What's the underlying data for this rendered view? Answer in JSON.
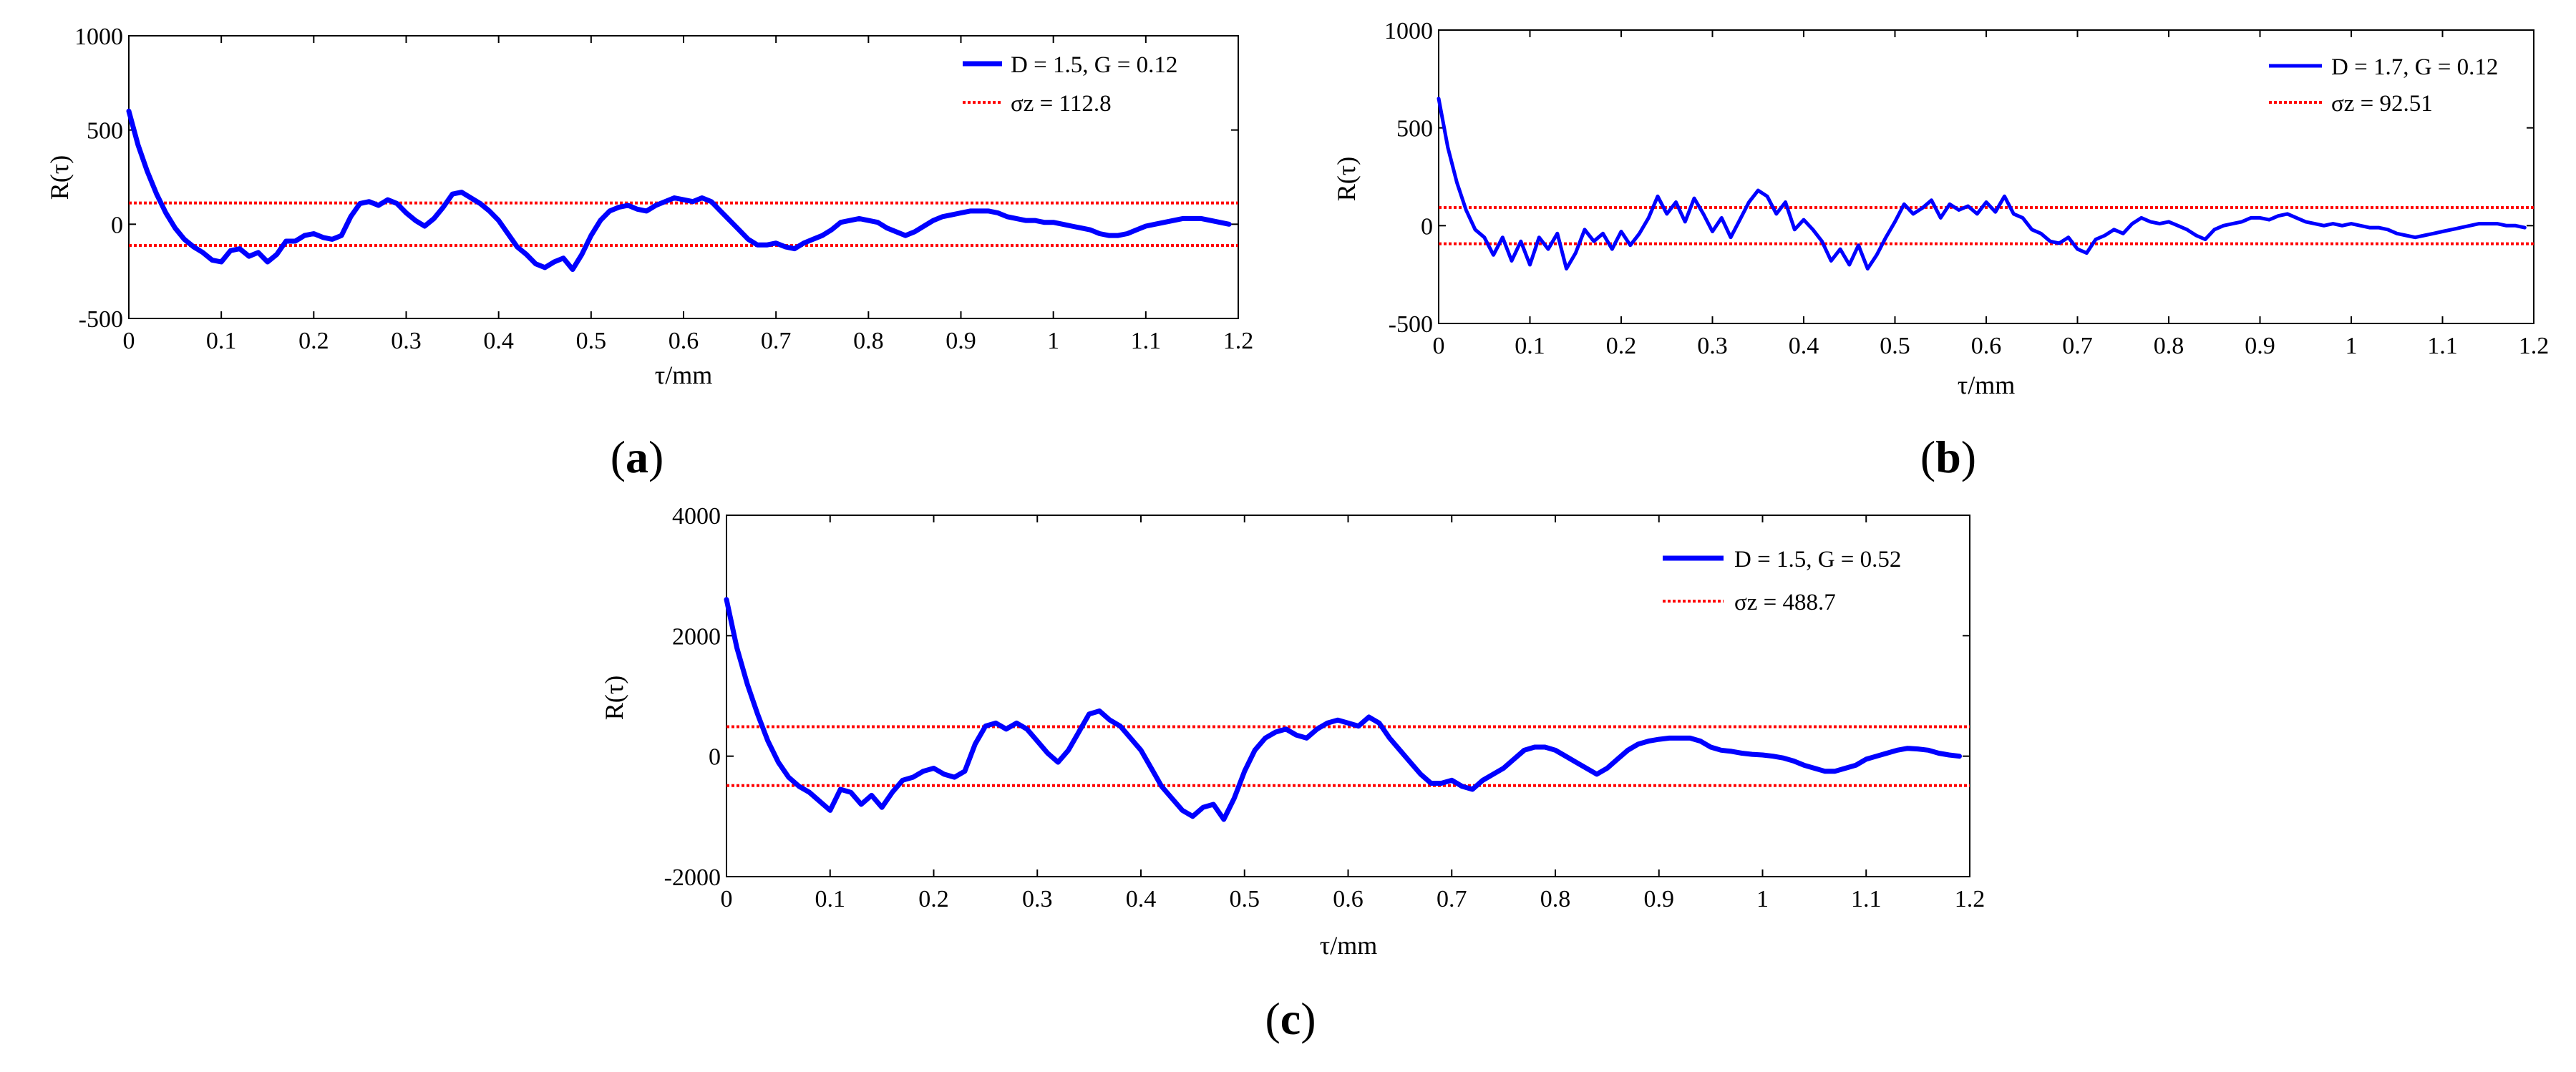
{
  "figure": {
    "type": "multi-panel chart",
    "description_labels": [
      "(a)",
      "(b)",
      "(c)"
    ]
  },
  "chart_data": [
    {
      "id": "a",
      "type": "line",
      "panel_label": {
        "open": "(",
        "letter": "a",
        "close": ")"
      },
      "xlabel": "τ/mm",
      "ylabel": "R(τ)",
      "xlim": [
        0,
        1.2
      ],
      "ylim": [
        -500,
        1000
      ],
      "xticks": [
        0,
        0.1,
        0.2,
        0.3,
        0.4,
        0.5,
        0.6,
        0.7,
        0.8,
        0.9,
        1,
        1.1,
        1.2
      ],
      "xtick_labels": [
        "0",
        "0.1",
        "0.2",
        "0.3",
        "0.4",
        "0.5",
        "0.6",
        "0.7",
        "0.8",
        "0.9",
        "1",
        "1.1",
        "1.2"
      ],
      "yticks": [
        -500,
        0,
        500,
        1000
      ],
      "ytick_labels": [
        "-500",
        "0",
        "500",
        "1000"
      ],
      "legend": [
        {
          "label": "D = 1.5, G = 0.12",
          "color": "#0000ff",
          "style": "solid"
        },
        {
          "label": "σz = 112.8",
          "color": "#ff0000",
          "style": "dotted"
        }
      ],
      "sigma": 112.8,
      "series": [
        {
          "name": "D = 1.5, G = 0.12",
          "color": "#0000ff",
          "x": [
            0,
            0.01,
            0.02,
            0.03,
            0.04,
            0.05,
            0.06,
            0.07,
            0.08,
            0.09,
            0.1,
            0.11,
            0.12,
            0.13,
            0.14,
            0.15,
            0.16,
            0.17,
            0.18,
            0.19,
            0.2,
            0.21,
            0.22,
            0.23,
            0.24,
            0.25,
            0.26,
            0.27,
            0.28,
            0.29,
            0.3,
            0.31,
            0.32,
            0.33,
            0.34,
            0.35,
            0.36,
            0.37,
            0.38,
            0.39,
            0.4,
            0.41,
            0.42,
            0.43,
            0.44,
            0.45,
            0.46,
            0.47,
            0.48,
            0.49,
            0.5,
            0.51,
            0.52,
            0.53,
            0.54,
            0.55,
            0.56,
            0.57,
            0.58,
            0.59,
            0.6,
            0.61,
            0.62,
            0.63,
            0.64,
            0.65,
            0.66,
            0.67,
            0.68,
            0.69,
            0.7,
            0.71,
            0.72,
            0.73,
            0.74,
            0.75,
            0.76,
            0.77,
            0.78,
            0.79,
            0.8,
            0.81,
            0.82,
            0.83,
            0.84,
            0.85,
            0.86,
            0.87,
            0.88,
            0.89,
            0.9,
            0.91,
            0.92,
            0.93,
            0.94,
            0.95,
            0.96,
            0.97,
            0.98,
            0.99,
            1.0,
            1.01,
            1.02,
            1.03,
            1.04,
            1.05,
            1.06,
            1.07,
            1.08,
            1.09,
            1.1,
            1.11,
            1.12,
            1.13,
            1.14,
            1.15,
            1.16,
            1.17,
            1.18,
            1.19
          ],
          "y": [
            600,
            420,
            280,
            160,
            60,
            -20,
            -80,
            -120,
            -150,
            -190,
            -200,
            -140,
            -130,
            -170,
            -150,
            -200,
            -160,
            -90,
            -90,
            -60,
            -50,
            -70,
            -80,
            -60,
            40,
            110,
            120,
            100,
            130,
            110,
            60,
            20,
            -10,
            30,
            90,
            160,
            170,
            140,
            110,
            70,
            20,
            -50,
            -120,
            -160,
            -210,
            -230,
            -200,
            -180,
            -240,
            -160,
            -60,
            20,
            70,
            90,
            100,
            80,
            70,
            100,
            120,
            140,
            130,
            120,
            140,
            120,
            70,
            20,
            -30,
            -80,
            -110,
            -110,
            -100,
            -120,
            -130,
            -100,
            -80,
            -60,
            -30,
            10,
            20,
            30,
            20,
            10,
            -20,
            -40,
            -60,
            -40,
            -10,
            20,
            40,
            50,
            60,
            70,
            70,
            70,
            60,
            40,
            30,
            20,
            20,
            10,
            10,
            0,
            -10,
            -20,
            -30,
            -50,
            -60,
            -60,
            -50,
            -30,
            -10,
            0,
            10,
            20,
            30,
            30,
            30,
            20,
            10,
            0
          ]
        }
      ]
    },
    {
      "id": "b",
      "type": "line",
      "panel_label": {
        "open": "(",
        "letter": "b",
        "close": ")"
      },
      "xlabel": "τ/mm",
      "ylabel": "R(τ)",
      "xlim": [
        0,
        1.2
      ],
      "ylim": [
        -500,
        1000
      ],
      "xticks": [
        0,
        0.1,
        0.2,
        0.3,
        0.4,
        0.5,
        0.6,
        0.7,
        0.8,
        0.9,
        1,
        1.1,
        1.2
      ],
      "xtick_labels": [
        "0",
        "0.1",
        "0.2",
        "0.3",
        "0.4",
        "0.5",
        "0.6",
        "0.7",
        "0.8",
        "0.9",
        "1",
        "1.1",
        "1.2"
      ],
      "yticks": [
        -500,
        0,
        500,
        1000
      ],
      "ytick_labels": [
        "-500",
        "0",
        "500",
        "1000"
      ],
      "legend": [
        {
          "label": "D = 1.7, G = 0.12",
          "color": "#0000ff",
          "style": "solid"
        },
        {
          "label": "σz = 92.51",
          "color": "#ff0000",
          "style": "dotted"
        }
      ],
      "sigma": 92.51,
      "series": [
        {
          "name": "D = 1.7, G = 0.12",
          "color": "#0000ff",
          "x": [
            0,
            0.01,
            0.02,
            0.03,
            0.04,
            0.05,
            0.06,
            0.07,
            0.08,
            0.09,
            0.1,
            0.11,
            0.12,
            0.13,
            0.14,
            0.15,
            0.16,
            0.17,
            0.18,
            0.19,
            0.2,
            0.21,
            0.22,
            0.23,
            0.24,
            0.25,
            0.26,
            0.27,
            0.28,
            0.29,
            0.3,
            0.31,
            0.32,
            0.33,
            0.34,
            0.35,
            0.36,
            0.37,
            0.38,
            0.39,
            0.4,
            0.41,
            0.42,
            0.43,
            0.44,
            0.45,
            0.46,
            0.47,
            0.48,
            0.49,
            0.5,
            0.51,
            0.52,
            0.53,
            0.54,
            0.55,
            0.56,
            0.57,
            0.58,
            0.59,
            0.6,
            0.61,
            0.62,
            0.63,
            0.64,
            0.65,
            0.66,
            0.67,
            0.68,
            0.69,
            0.7,
            0.71,
            0.72,
            0.73,
            0.74,
            0.75,
            0.76,
            0.77,
            0.78,
            0.79,
            0.8,
            0.81,
            0.82,
            0.83,
            0.84,
            0.85,
            0.86,
            0.87,
            0.88,
            0.89,
            0.9,
            0.91,
            0.92,
            0.93,
            0.94,
            0.95,
            0.96,
            0.97,
            0.98,
            0.99,
            1.0,
            1.01,
            1.02,
            1.03,
            1.04,
            1.05,
            1.06,
            1.07,
            1.08,
            1.09,
            1.1,
            1.11,
            1.12,
            1.13,
            1.14,
            1.15,
            1.16,
            1.17,
            1.18,
            1.19
          ],
          "y": [
            650,
            400,
            220,
            80,
            -20,
            -60,
            -150,
            -60,
            -180,
            -80,
            -200,
            -60,
            -120,
            -40,
            -220,
            -140,
            -20,
            -80,
            -40,
            -120,
            -30,
            -100,
            -40,
            40,
            150,
            60,
            120,
            20,
            140,
            60,
            -30,
            40,
            -60,
            30,
            120,
            180,
            150,
            60,
            120,
            -20,
            30,
            -20,
            -80,
            -180,
            -120,
            -200,
            -100,
            -220,
            -150,
            -60,
            20,
            110,
            60,
            90,
            130,
            40,
            110,
            80,
            100,
            60,
            120,
            70,
            150,
            60,
            40,
            -20,
            -40,
            -80,
            -90,
            -60,
            -120,
            -140,
            -70,
            -50,
            -20,
            -40,
            10,
            40,
            20,
            10,
            20,
            0,
            -20,
            -50,
            -70,
            -20,
            0,
            10,
            20,
            40,
            40,
            30,
            50,
            60,
            40,
            20,
            10,
            0,
            10,
            0,
            10,
            0,
            -10,
            -10,
            -20,
            -40,
            -50,
            -60,
            -50,
            -40,
            -30,
            -20,
            -10,
            0,
            10,
            10,
            10,
            0,
            0,
            -10
          ]
        }
      ]
    },
    {
      "id": "c",
      "type": "line",
      "panel_label": {
        "open": "(",
        "letter": "c",
        "close": ")"
      },
      "xlabel": "τ/mm",
      "ylabel": "R(τ)",
      "xlim": [
        0,
        1.2
      ],
      "ylim": [
        -2000,
        4000
      ],
      "xticks": [
        0,
        0.1,
        0.2,
        0.3,
        0.4,
        0.5,
        0.6,
        0.7,
        0.8,
        0.9,
        1,
        1.1,
        1.2
      ],
      "xtick_labels": [
        "0",
        "0.1",
        "0.2",
        "0.3",
        "0.4",
        "0.5",
        "0.6",
        "0.7",
        "0.8",
        "0.9",
        "1",
        "1.1",
        "1.2"
      ],
      "yticks": [
        -2000,
        0,
        2000,
        4000
      ],
      "ytick_labels": [
        "-2000",
        "0",
        "2000",
        "4000"
      ],
      "legend": [
        {
          "label": "D = 1.5, G = 0.52",
          "color": "#0000ff",
          "style": "solid"
        },
        {
          "label": "σz = 488.7",
          "color": "#ff0000",
          "style": "dotted"
        }
      ],
      "sigma": 488.7,
      "series": [
        {
          "name": "D = 1.5, G = 0.52",
          "color": "#0000ff",
          "x": [
            0,
            0.01,
            0.02,
            0.03,
            0.04,
            0.05,
            0.06,
            0.07,
            0.08,
            0.09,
            0.1,
            0.11,
            0.12,
            0.13,
            0.14,
            0.15,
            0.16,
            0.17,
            0.18,
            0.19,
            0.2,
            0.21,
            0.22,
            0.23,
            0.24,
            0.25,
            0.26,
            0.27,
            0.28,
            0.29,
            0.3,
            0.31,
            0.32,
            0.33,
            0.34,
            0.35,
            0.36,
            0.37,
            0.38,
            0.39,
            0.4,
            0.41,
            0.42,
            0.43,
            0.44,
            0.45,
            0.46,
            0.47,
            0.48,
            0.49,
            0.5,
            0.51,
            0.52,
            0.53,
            0.54,
            0.55,
            0.56,
            0.57,
            0.58,
            0.59,
            0.6,
            0.61,
            0.62,
            0.63,
            0.64,
            0.65,
            0.66,
            0.67,
            0.68,
            0.69,
            0.7,
            0.71,
            0.72,
            0.73,
            0.74,
            0.75,
            0.76,
            0.77,
            0.78,
            0.79,
            0.8,
            0.81,
            0.82,
            0.83,
            0.84,
            0.85,
            0.86,
            0.87,
            0.88,
            0.89,
            0.9,
            0.91,
            0.92,
            0.93,
            0.94,
            0.95,
            0.96,
            0.97,
            0.98,
            0.99,
            1.0,
            1.01,
            1.02,
            1.03,
            1.04,
            1.05,
            1.06,
            1.07,
            1.08,
            1.09,
            1.1,
            1.11,
            1.12,
            1.13,
            1.14,
            1.15,
            1.16,
            1.17,
            1.18,
            1.19
          ],
          "y": [
            2600,
            1800,
            1200,
            700,
            250,
            -100,
            -350,
            -500,
            -600,
            -750,
            -900,
            -550,
            -600,
            -800,
            -650,
            -850,
            -600,
            -400,
            -350,
            -250,
            -200,
            -300,
            -350,
            -250,
            200,
            500,
            550,
            450,
            550,
            450,
            250,
            50,
            -100,
            100,
            400,
            700,
            750,
            600,
            500,
            300,
            100,
            -200,
            -500,
            -700,
            -900,
            -1000,
            -850,
            -800,
            -1050,
            -700,
            -250,
            100,
            300,
            400,
            450,
            350,
            300,
            450,
            550,
            600,
            550,
            500,
            650,
            550,
            300,
            100,
            -100,
            -300,
            -450,
            -450,
            -400,
            -500,
            -550,
            -400,
            -300,
            -200,
            -50,
            100,
            150,
            150,
            100,
            0,
            -100,
            -200,
            -300,
            -200,
            -50,
            100,
            200,
            250,
            280,
            300,
            300,
            300,
            250,
            150,
            100,
            80,
            50,
            30,
            20,
            0,
            -30,
            -80,
            -150,
            -200,
            -250,
            -250,
            -200,
            -150,
            -50,
            0,
            50,
            100,
            130,
            120,
            100,
            50,
            20,
            0
          ]
        }
      ]
    }
  ]
}
